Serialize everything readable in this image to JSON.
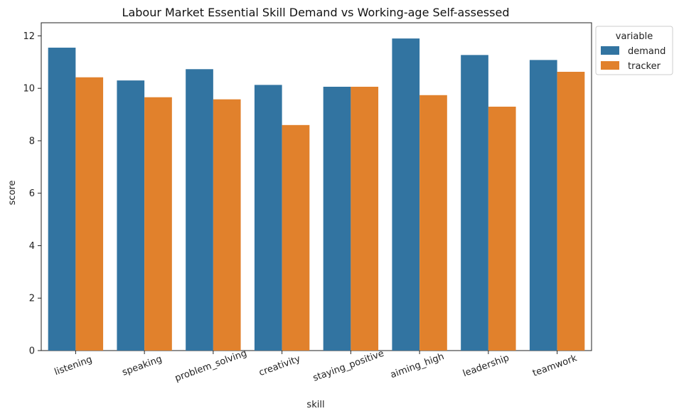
{
  "chart_data": {
    "type": "bar",
    "title": "Labour Market Essential Skill Demand vs Working-age Self-assessed",
    "xlabel": "skill",
    "ylabel": "score",
    "categories": [
      "listening",
      "speaking",
      "problem_solving",
      "creativity",
      "staying_positive",
      "aiming_high",
      "leadership",
      "teamwork"
    ],
    "series": [
      {
        "name": "demand",
        "color": "#3274a1",
        "values": [
          11.55,
          10.3,
          10.73,
          10.13,
          10.06,
          11.9,
          11.27,
          11.08
        ]
      },
      {
        "name": "tracker",
        "color": "#e1812c",
        "values": [
          10.42,
          9.66,
          9.58,
          8.6,
          10.06,
          9.74,
          9.3,
          10.63
        ]
      }
    ],
    "ylim": [
      0,
      12.5
    ],
    "yticks": [
      0,
      2,
      4,
      6,
      8,
      10,
      12
    ],
    "grid": false,
    "legend": {
      "title": "variable",
      "placement": "outside top-right"
    }
  }
}
